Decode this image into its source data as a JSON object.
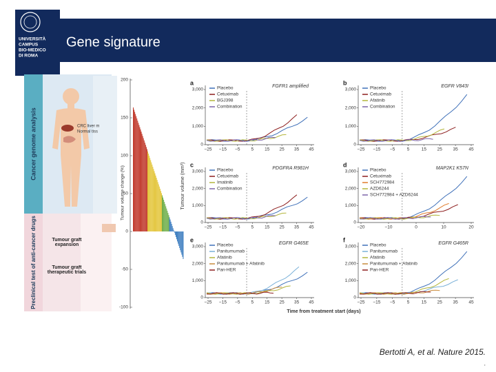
{
  "header": {
    "logo": [
      "UNIVERSITÀ",
      "CAMPUS",
      "BIO-MEDICO",
      "DI ROMA"
    ],
    "title": "Gene signature"
  },
  "figure": {
    "left": {
      "section_top": "Cancer genome analysis",
      "section_bottom": "Preclinical test of anti-cancer drugs",
      "labels": [
        "CRC liver m",
        "Normal tiss",
        "Tumour graft expansion",
        "Tumour graft therapeutic trials"
      ],
      "ylabel": "Tumour volume change (%)",
      "yticks": [
        "200",
        "150",
        "100",
        "50",
        "0",
        "-50",
        "-100"
      ]
    },
    "ylabel": "Tumour volume (mm³)",
    "xlabel": "Time from treatment start (days)",
    "panels": [
      {
        "letter": "a",
        "title": "FGFR1 amplified",
        "yticks": [
          "0",
          "1,000",
          "2,000",
          "3,000"
        ],
        "xticks": [
          "−25",
          "−15",
          "−5",
          "5",
          "15",
          "25",
          "35",
          "45"
        ],
        "legend": [
          {
            "name": "Placebo",
            "color": "#3d6fb8"
          },
          {
            "name": "Cetuximab",
            "color": "#8c1c1c"
          },
          {
            "name": "BGJ398",
            "color": "#b3b53a"
          },
          {
            "name": "Combination",
            "color": "#7a62a8"
          }
        ]
      },
      {
        "letter": "b",
        "title": "EGFR V843I",
        "yticks": [
          "0",
          "1,000",
          "2,000",
          "3,000"
        ],
        "xticks": [
          "−25",
          "−15",
          "−5",
          "5",
          "15",
          "25",
          "35",
          "45"
        ],
        "legend": [
          {
            "name": "Placebo",
            "color": "#3d6fb8"
          },
          {
            "name": "Cetuximab",
            "color": "#8c1c1c"
          },
          {
            "name": "Afatinib",
            "color": "#b3b53a"
          },
          {
            "name": "Combination",
            "color": "#7a62a8"
          }
        ]
      },
      {
        "letter": "c",
        "title": "PDGFRA R981H",
        "yticks": [
          "0",
          "1,000",
          "2,000",
          "3,000"
        ],
        "xticks": [
          "−25",
          "−15",
          "−5",
          "5",
          "15",
          "25",
          "35",
          "45"
        ],
        "legend": [
          {
            "name": "Placebo",
            "color": "#3d6fb8"
          },
          {
            "name": "Cetuximab",
            "color": "#8c1c1c"
          },
          {
            "name": "Imatinib",
            "color": "#b3b53a"
          },
          {
            "name": "Combination",
            "color": "#7a62a8"
          }
        ]
      },
      {
        "letter": "d",
        "title": "MAP2K1 K57N",
        "yticks": [
          "0",
          "1,000",
          "2,000",
          "3,000"
        ],
        "xticks": [
          "−20",
          "−10",
          "0",
          "10",
          "20"
        ],
        "legend": [
          {
            "name": "Placebo",
            "color": "#3d6fb8"
          },
          {
            "name": "Cetuximab",
            "color": "#8c1c1c"
          },
          {
            "name": "SCH772984",
            "color": "#e07b2a"
          },
          {
            "name": "AZD6244",
            "color": "#b3b53a"
          },
          {
            "name": "SCH772984 + AZD6244",
            "color": "#7a62a8"
          }
        ]
      },
      {
        "letter": "e",
        "title": "EGFR G465E",
        "yticks": [
          "0",
          "1,000",
          "2,000",
          "3,000"
        ],
        "xticks": [
          "−25",
          "−15",
          "−5",
          "5",
          "15",
          "25",
          "35",
          "45"
        ],
        "legend": [
          {
            "name": "Placebo",
            "color": "#3d6fb8"
          },
          {
            "name": "Panitumumab",
            "color": "#79b0d8"
          },
          {
            "name": "Afatinib",
            "color": "#b3b53a"
          },
          {
            "name": "Panitumumab + Afatinib",
            "color": "#c98a3a"
          },
          {
            "name": "Pan-HER",
            "color": "#8c1c1c"
          }
        ]
      },
      {
        "letter": "f",
        "title": "EGFR G465R",
        "yticks": [
          "0",
          "1,000",
          "2,000",
          "3,000"
        ],
        "xticks": [
          "−25",
          "−15",
          "−5",
          "5",
          "15",
          "25",
          "35",
          "45"
        ],
        "legend": [
          {
            "name": "Placebo",
            "color": "#3d6fb8"
          },
          {
            "name": "Panitumumab",
            "color": "#79b0d8"
          },
          {
            "name": "Afatinib",
            "color": "#b3b53a"
          },
          {
            "name": "Panitumumab + Afatinib",
            "color": "#c98a3a"
          },
          {
            "name": "Pan-HER",
            "color": "#8c1c1c"
          }
        ]
      }
    ]
  },
  "citation": "Bertotti A, et al. Nature 2015.",
  "footnote": "."
}
